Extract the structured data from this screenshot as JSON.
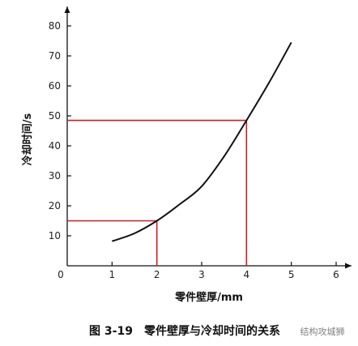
{
  "chart_data": {
    "type": "line",
    "xlabel": "零件壁厚/mm",
    "ylabel": "冷却时间/s",
    "xlim": [
      0,
      6
    ],
    "ylim": [
      0,
      80
    ],
    "x_ticks": [
      "0",
      "1",
      "2",
      "3",
      "4",
      "5",
      "6"
    ],
    "y_ticks": [
      "10",
      "20",
      "30",
      "40",
      "50",
      "60",
      "70",
      "80"
    ],
    "series": [
      {
        "x": [
          1.0,
          1.5,
          2.0,
          2.5,
          3.0,
          3.5,
          4.0,
          4.5,
          5.0
        ],
        "y": [
          8.2,
          10.8,
          15.0,
          20.4,
          26.5,
          36.5,
          48.5,
          61.0,
          74.5
        ]
      }
    ],
    "reference_lines": [
      {
        "x": 2.0,
        "y": 15
      },
      {
        "x": 4.0,
        "y": 48.5
      }
    ],
    "colors": {
      "curve": "#111111",
      "reference": "#cc1f1f",
      "axis": "#111111"
    }
  },
  "caption": "图 3-19　零件壁厚与冷却时间的关系",
  "watermark": "结构攻城狮"
}
